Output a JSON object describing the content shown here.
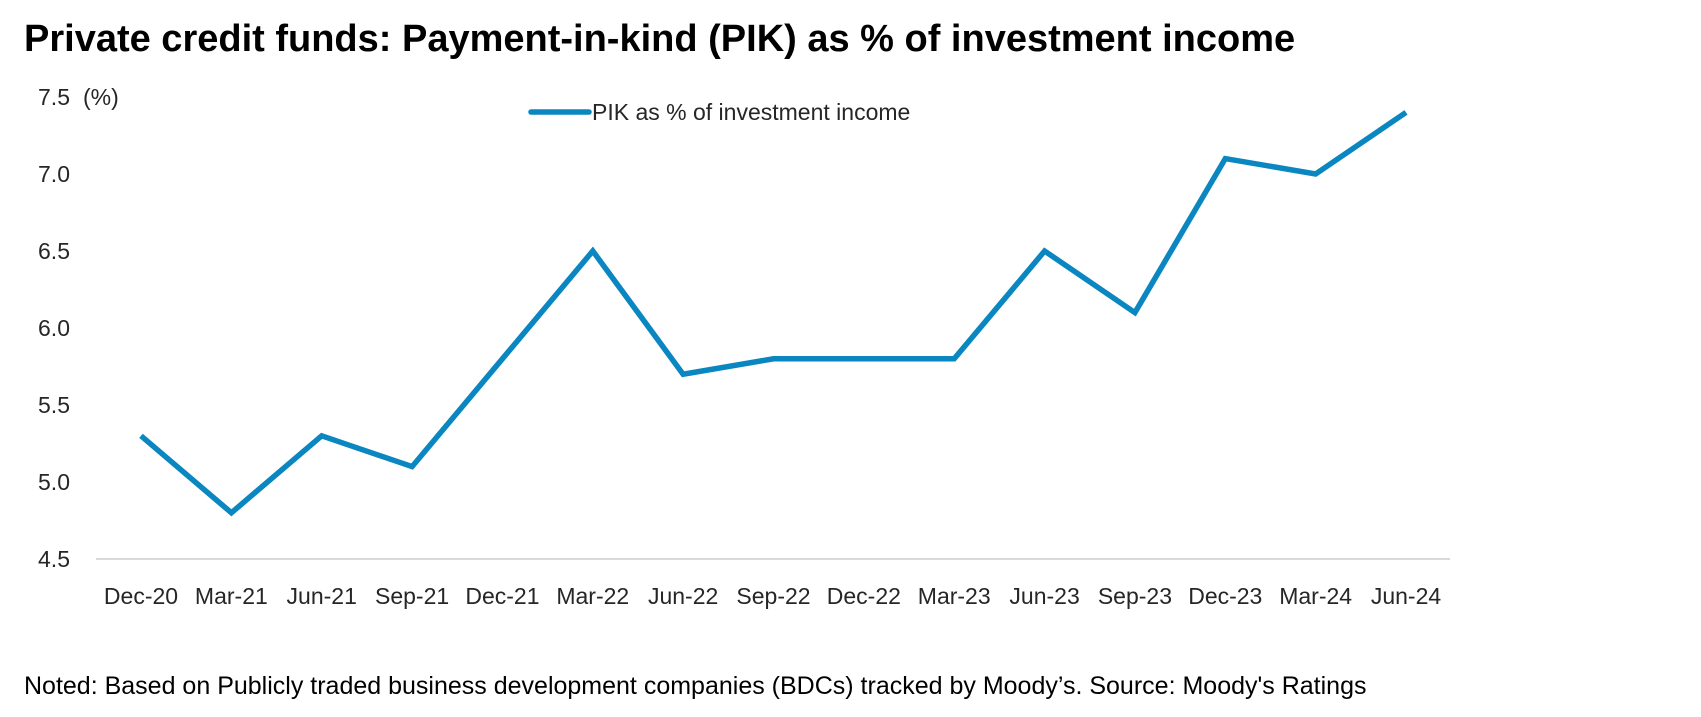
{
  "chart_data": {
    "type": "line",
    "title": "Private credit funds: Payment-in-kind (PIK) as % of investment income",
    "ylabel": "(%)",
    "categories": [
      "Dec-20",
      "Mar-21",
      "Jun-21",
      "Sep-21",
      "Dec-21",
      "Mar-22",
      "Jun-22",
      "Sep-22",
      "Dec-22",
      "Mar-23",
      "Jun-23",
      "Sep-23",
      "Dec-23",
      "Mar-24",
      "Jun-24"
    ],
    "series": [
      {
        "name": "PIK as % of investment income",
        "color": "#0a86c0",
        "values": [
          5.3,
          4.8,
          5.3,
          5.1,
          5.8,
          6.5,
          5.7,
          5.8,
          5.8,
          5.8,
          6.5,
          6.1,
          7.1,
          7.0,
          7.4
        ]
      }
    ],
    "ylim": [
      4.5,
      7.5
    ],
    "yticks": [
      "4.5",
      "5.0",
      "5.5",
      "6.0",
      "6.5",
      "7.0",
      "7.5"
    ],
    "grid": false,
    "legend_position": "top-center",
    "note": "Noted: Based on Publicly traded business development companies (BDCs) tracked by Moody’s. Source: Moody's Ratings"
  }
}
